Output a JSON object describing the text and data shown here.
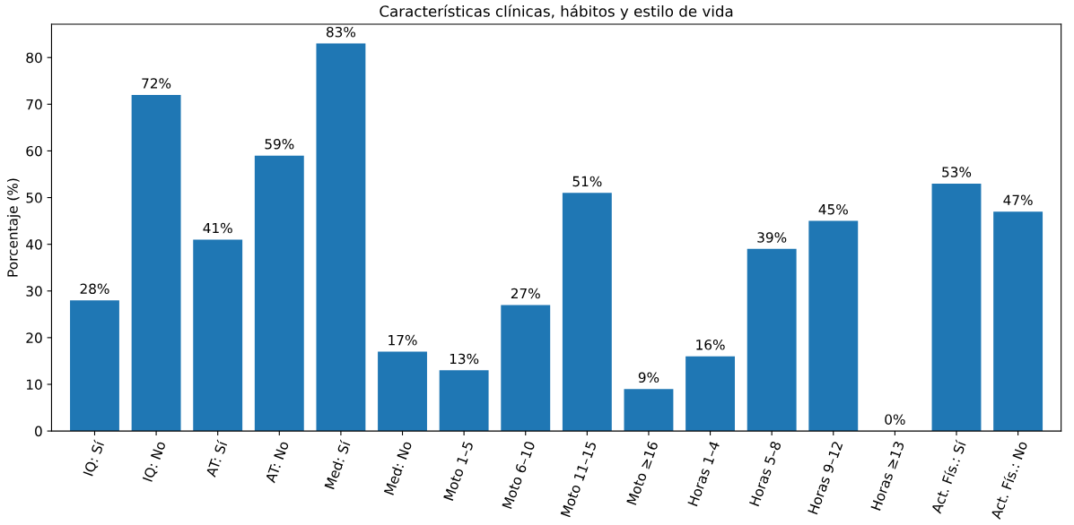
{
  "chart_data": {
    "type": "bar",
    "title": "Características clínicas, hábitos y estilo de vida",
    "ylabel": "Porcentaje (%)",
    "categories": [
      "IQ: Sí",
      "IQ: No",
      "AT: Sí",
      "AT: No",
      "Med: Sí",
      "Med: No",
      "Moto 1–5",
      "Moto 6–10",
      "Moto 11–15",
      "Moto ≥16",
      "Horas 1–4",
      "Horas 5–8",
      "Horas 9–12",
      "Horas ≥13",
      "Act. Fís.: Sí",
      "Act. Fís.: No"
    ],
    "values": [
      28,
      72,
      41,
      59,
      83,
      17,
      13,
      27,
      51,
      9,
      16,
      39,
      45,
      0,
      53,
      47
    ],
    "value_labels": [
      "28%",
      "72%",
      "41%",
      "59%",
      "83%",
      "17%",
      "13%",
      "27%",
      "51%",
      "9%",
      "16%",
      "39%",
      "45%",
      "0%",
      "53%",
      "47%"
    ],
    "color": "#1f77b4",
    "ylim": [
      0,
      87.15
    ],
    "yticks": [
      0,
      10,
      20,
      30,
      40,
      50,
      60,
      70,
      80
    ],
    "grid": false,
    "legend": false
  }
}
